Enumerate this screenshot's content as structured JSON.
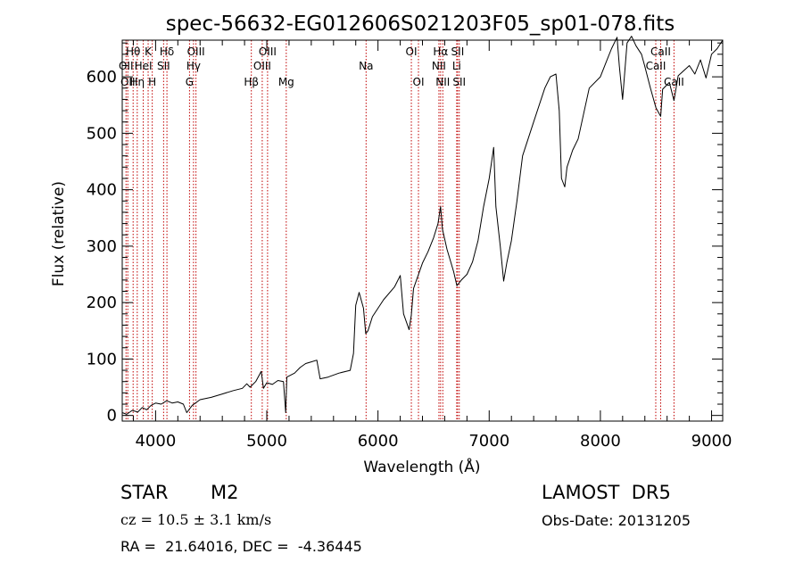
{
  "chart_data": {
    "type": "line",
    "title": "spec-56632-EG012606S021203F05_sp01-078.fits",
    "xlabel": "Wavelength (Å)",
    "ylabel": "Flux (relative)",
    "xlim": [
      3700,
      9100
    ],
    "ylim": [
      -10,
      665
    ],
    "xticks": [
      4000,
      5000,
      6000,
      7000,
      8000,
      9000
    ],
    "yticks": [
      0,
      100,
      200,
      300,
      400,
      500,
      600
    ],
    "grid": false,
    "line_color": "#000000",
    "marker_color": "#c00000",
    "series": [
      {
        "points": [
          [
            3700,
            5
          ],
          [
            3740,
            2
          ],
          [
            3790,
            9
          ],
          [
            3840,
            6
          ],
          [
            3880,
            14
          ],
          [
            3920,
            10
          ],
          [
            3960,
            18
          ],
          [
            4000,
            22
          ],
          [
            4050,
            20
          ],
          [
            4100,
            26
          ],
          [
            4150,
            22
          ],
          [
            4200,
            24
          ],
          [
            4250,
            20
          ],
          [
            4280,
            5
          ],
          [
            4330,
            18
          ],
          [
            4400,
            28
          ],
          [
            4500,
            32
          ],
          [
            4600,
            38
          ],
          [
            4700,
            44
          ],
          [
            4780,
            48
          ],
          [
            4820,
            56
          ],
          [
            4850,
            50
          ],
          [
            4900,
            60
          ],
          [
            4950,
            78
          ],
          [
            4970,
            48
          ],
          [
            5000,
            58
          ],
          [
            5050,
            55
          ],
          [
            5100,
            62
          ],
          [
            5150,
            60
          ],
          [
            5170,
            5
          ],
          [
            5180,
            68
          ],
          [
            5250,
            75
          ],
          [
            5300,
            85
          ],
          [
            5350,
            92
          ],
          [
            5400,
            95
          ],
          [
            5450,
            98
          ],
          [
            5480,
            65
          ],
          [
            5550,
            68
          ],
          [
            5650,
            75
          ],
          [
            5750,
            80
          ],
          [
            5780,
            110
          ],
          [
            5800,
            195
          ],
          [
            5830,
            218
          ],
          [
            5870,
            190
          ],
          [
            5890,
            145
          ],
          [
            5910,
            150
          ],
          [
            5950,
            175
          ],
          [
            6050,
            205
          ],
          [
            6150,
            228
          ],
          [
            6200,
            248
          ],
          [
            6230,
            180
          ],
          [
            6280,
            152
          ],
          [
            6300,
            178
          ],
          [
            6320,
            225
          ],
          [
            6400,
            270
          ],
          [
            6450,
            290
          ],
          [
            6500,
            315
          ],
          [
            6540,
            340
          ],
          [
            6563,
            370
          ],
          [
            6580,
            330
          ],
          [
            6620,
            295
          ],
          [
            6680,
            255
          ],
          [
            6710,
            230
          ],
          [
            6750,
            240
          ],
          [
            6800,
            250
          ],
          [
            6850,
            272
          ],
          [
            6900,
            310
          ],
          [
            6950,
            370
          ],
          [
            7000,
            420
          ],
          [
            7040,
            475
          ],
          [
            7060,
            370
          ],
          [
            7100,
            300
          ],
          [
            7130,
            238
          ],
          [
            7160,
            272
          ],
          [
            7200,
            310
          ],
          [
            7250,
            380
          ],
          [
            7300,
            460
          ],
          [
            7400,
            520
          ],
          [
            7500,
            580
          ],
          [
            7550,
            600
          ],
          [
            7600,
            605
          ],
          [
            7630,
            540
          ],
          [
            7650,
            420
          ],
          [
            7680,
            405
          ],
          [
            7700,
            440
          ],
          [
            7750,
            470
          ],
          [
            7800,
            490
          ],
          [
            7850,
            535
          ],
          [
            7900,
            580
          ],
          [
            8000,
            600
          ],
          [
            8050,
            625
          ],
          [
            8100,
            650
          ],
          [
            8150,
            670
          ],
          [
            8170,
            620
          ],
          [
            8200,
            560
          ],
          [
            8240,
            660
          ],
          [
            8280,
            672
          ],
          [
            8320,
            655
          ],
          [
            8370,
            640
          ],
          [
            8400,
            618
          ],
          [
            8450,
            580
          ],
          [
            8500,
            545
          ],
          [
            8542,
            530
          ],
          [
            8560,
            578
          ],
          [
            8620,
            590
          ],
          [
            8662,
            558
          ],
          [
            8700,
            602
          ],
          [
            8800,
            620
          ],
          [
            8850,
            605
          ],
          [
            8900,
            630
          ],
          [
            8950,
            598
          ],
          [
            9000,
            640
          ],
          [
            9050,
            650
          ],
          [
            9100,
            665
          ]
        ]
      }
    ],
    "line_markers": [
      {
        "wl": 3734,
        "label": "OII",
        "row": 2
      },
      {
        "wl": 3750,
        "label": "OII",
        "row": 3
      },
      {
        "wl": 3798,
        "label": "Hθ",
        "row": 1
      },
      {
        "wl": 3835,
        "label": "Hη",
        "row": 3
      },
      {
        "wl": 3889,
        "label": "HeI",
        "row": 2
      },
      {
        "wl": 3933,
        "label": "K",
        "row": 1
      },
      {
        "wl": 3970,
        "label": "H",
        "row": 3
      },
      {
        "wl": 4072,
        "label": "SII",
        "row": 2
      },
      {
        "wl": 4102,
        "label": "Hδ",
        "row": 1
      },
      {
        "wl": 4305,
        "label": "G",
        "row": 3
      },
      {
        "wl": 4341,
        "label": "Hγ",
        "row": 2
      },
      {
        "wl": 4363,
        "label": "OIII",
        "row": 1
      },
      {
        "wl": 4861,
        "label": "Hβ",
        "row": 3
      },
      {
        "wl": 4959,
        "label": "OIII",
        "row": 2
      },
      {
        "wl": 5007,
        "label": "OIII",
        "row": 1
      },
      {
        "wl": 5175,
        "label": "Mg",
        "row": 3
      },
      {
        "wl": 5893,
        "label": "Na",
        "row": 2
      },
      {
        "wl": 6300,
        "label": "OI",
        "row": 1
      },
      {
        "wl": 6364,
        "label": "OI",
        "row": 3
      },
      {
        "wl": 6548,
        "label": "NII",
        "row": 2
      },
      {
        "wl": 6563,
        "label": "Hα",
        "row": 1
      },
      {
        "wl": 6583,
        "label": "NII",
        "row": 3
      },
      {
        "wl": 6708,
        "label": "Li",
        "row": 2
      },
      {
        "wl": 6716,
        "label": "SII",
        "row": 1
      },
      {
        "wl": 6731,
        "label": "SII",
        "row": 3
      },
      {
        "wl": 8498,
        "label": "CaII",
        "row": 2
      },
      {
        "wl": 8542,
        "label": "CaII",
        "row": 1
      },
      {
        "wl": 8662,
        "label": "CaII",
        "row": 3
      }
    ]
  },
  "info": {
    "object_class": "STAR",
    "subclass": "M2",
    "survey": "LAMOST  DR5",
    "redshift": "cz = 10.5 ± 3.1 km/s",
    "obs_date": "Obs-Date: 20131205",
    "coords": "RA =  21.64016, DEC =  -4.36445"
  }
}
